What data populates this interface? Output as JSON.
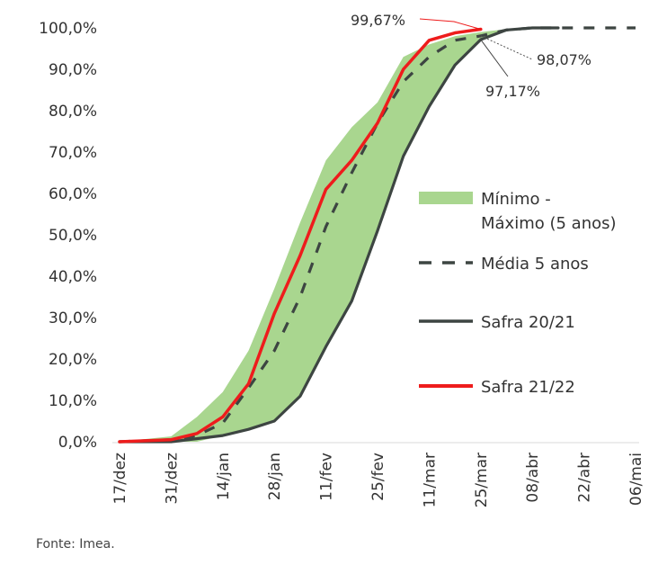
{
  "chart_data": {
    "type": "line",
    "title": "",
    "xlabel": "",
    "ylabel": "",
    "x_ticks": [
      "17/dez",
      "31/dez",
      "14/jan",
      "28/jan",
      "11/fev",
      "25/fev",
      "11/mar",
      "25/mar",
      "08/abr",
      "22/abr",
      "06/mai"
    ],
    "x_tick_days": [
      0,
      14,
      28,
      42,
      56,
      70,
      84,
      98,
      112,
      126,
      140
    ],
    "xlim_days": [
      0,
      140
    ],
    "y_ticks": [
      "0,0%",
      "10,0%",
      "20,0%",
      "30,0%",
      "40,0%",
      "50,0%",
      "60,0%",
      "70,0%",
      "80,0%",
      "90,0%",
      "100,0%"
    ],
    "ylim": [
      0,
      100
    ],
    "grid": false,
    "legend_position": "right",
    "band": {
      "name": "Mínimo - Máximo (5 anos)",
      "name_line1": "Mínimo -",
      "name_line2": "Máximo (5 anos)",
      "color": "#a9d68f",
      "x": [
        0,
        14,
        21,
        28,
        35,
        42,
        49,
        56,
        63,
        70,
        77,
        84,
        91,
        98,
        105,
        112
      ],
      "max": [
        0,
        1.3,
        6,
        12,
        22,
        37,
        53,
        68,
        76,
        82,
        93,
        96,
        98,
        99,
        99.7,
        100
      ],
      "min": [
        0,
        0,
        0,
        1.5,
        3,
        5,
        11,
        23,
        34,
        51,
        69,
        81,
        91,
        97,
        99.5,
        100
      ]
    },
    "series": [
      {
        "name": "Média 5 anos",
        "style": "dashed",
        "color": "#3d4542",
        "x": [
          0,
          14,
          21,
          28,
          35,
          42,
          49,
          56,
          63,
          70,
          77,
          84,
          91,
          98,
          105,
          112,
          119,
          126,
          133,
          140
        ],
        "y": [
          0,
          0.5,
          1.5,
          4.5,
          13,
          22,
          35,
          52,
          65,
          77,
          87,
          93,
          97,
          98.07,
          99.5,
          100,
          100,
          100,
          100,
          100
        ]
      },
      {
        "name": "Safra 20/21",
        "style": "solid",
        "color": "#3d4542",
        "x": [
          0,
          14,
          28,
          35,
          42,
          49,
          56,
          63,
          70,
          77,
          84,
          91,
          98,
          105,
          112,
          119
        ],
        "y": [
          0,
          0,
          1.5,
          3,
          5,
          11,
          23,
          34,
          51,
          69,
          81,
          91,
          97.17,
          99.5,
          100,
          100
        ]
      },
      {
        "name": "Safra 21/22",
        "style": "solid",
        "color": "#ee1c1c",
        "x": [
          0,
          14,
          21,
          28,
          35,
          42,
          49,
          56,
          63,
          70,
          77,
          84,
          91,
          98
        ],
        "y": [
          0,
          0.5,
          2,
          6,
          14,
          31,
          45,
          61,
          68,
          77,
          90,
          97,
          98.8,
          99.67
        ]
      }
    ],
    "annotations": [
      {
        "text": "99,67%",
        "series": "Safra 21/22"
      },
      {
        "text": "98,07%",
        "series": "Média 5 anos"
      },
      {
        "text": "97,17%",
        "series": "Safra 20/21"
      }
    ],
    "source": "Fonte: Imea."
  }
}
